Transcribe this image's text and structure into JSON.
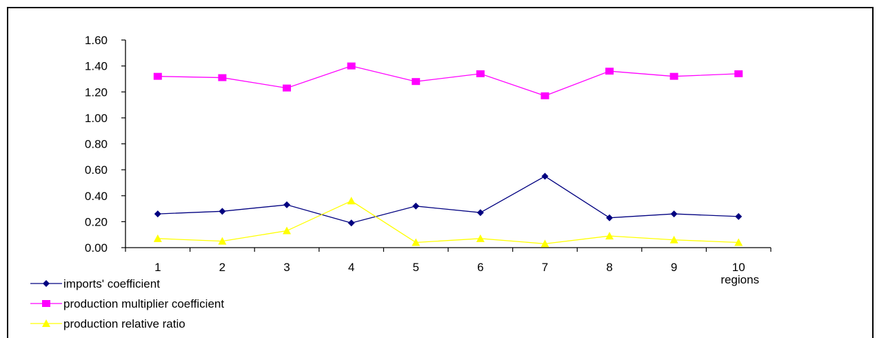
{
  "chart_data": {
    "type": "line",
    "xlabel": "regions",
    "ylabel": "",
    "title": "",
    "categories": [
      "1",
      "2",
      "3",
      "4",
      "5",
      "6",
      "7",
      "8",
      "9",
      "10"
    ],
    "ylim": [
      0,
      1.6
    ],
    "yticks": [
      "0.00",
      "0.20",
      "0.40",
      "0.60",
      "0.80",
      "1.00",
      "1.20",
      "1.40",
      "1.60"
    ],
    "grid": false,
    "legend_position": "bottom-left",
    "series": [
      {
        "name": "imports' coefficient",
        "color": "#000080",
        "marker": "diamond",
        "values": [
          0.26,
          0.28,
          0.33,
          0.19,
          0.32,
          0.27,
          0.55,
          0.23,
          0.26,
          0.24
        ]
      },
      {
        "name": "production multiplier coefficient",
        "color": "#ff00ff",
        "marker": "square",
        "values": [
          1.32,
          1.31,
          1.23,
          1.4,
          1.28,
          1.34,
          1.17,
          1.36,
          1.32,
          1.34
        ]
      },
      {
        "name": "production relative ratio",
        "color": "#ffff00",
        "marker": "triangle",
        "values": [
          0.07,
          0.05,
          0.13,
          0.36,
          0.04,
          0.07,
          0.03,
          0.09,
          0.06,
          0.04
        ]
      }
    ]
  }
}
